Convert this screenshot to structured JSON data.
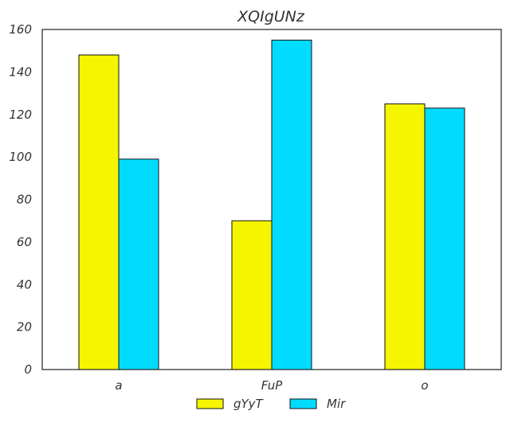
{
  "chart_data": {
    "type": "bar",
    "title": "XQIgUNz",
    "categories": [
      "a",
      "FuP",
      "o"
    ],
    "series": [
      {
        "name": "gYyT",
        "values": [
          148,
          70,
          125
        ],
        "color": "#f5f500"
      },
      {
        "name": "Mir",
        "values": [
          99,
          155,
          123
        ],
        "color": "#00dcff"
      }
    ],
    "ylim": [
      0,
      160
    ],
    "yticks": [
      0,
      20,
      40,
      60,
      80,
      100,
      120,
      140,
      160
    ],
    "xlabel": "",
    "ylabel": "",
    "grid": false,
    "legend_position": "bottom-center"
  }
}
